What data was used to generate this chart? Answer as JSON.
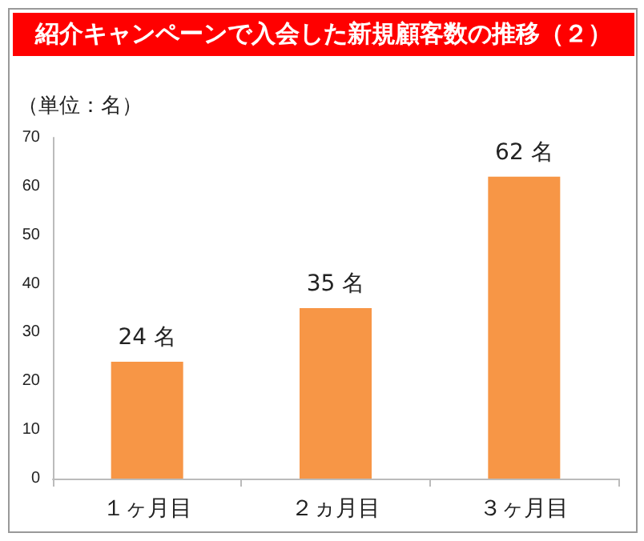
{
  "chart_data": {
    "type": "bar",
    "title": "紹介キャンペーンで入会した新規顧客数の推移（２）",
    "ylabel": "（単位：名）",
    "categories": [
      "１ヶ月目",
      "２ヵ月目",
      "３ヶ月目"
    ],
    "values": [
      24,
      35,
      62
    ],
    "color": "#f79646",
    "value_labels": [
      "24 名",
      "35 名",
      "62 名"
    ],
    "ylim": [
      0,
      70
    ],
    "yticks": [
      0,
      10,
      20,
      30,
      40,
      50,
      60,
      70
    ],
    "grid": false
  }
}
